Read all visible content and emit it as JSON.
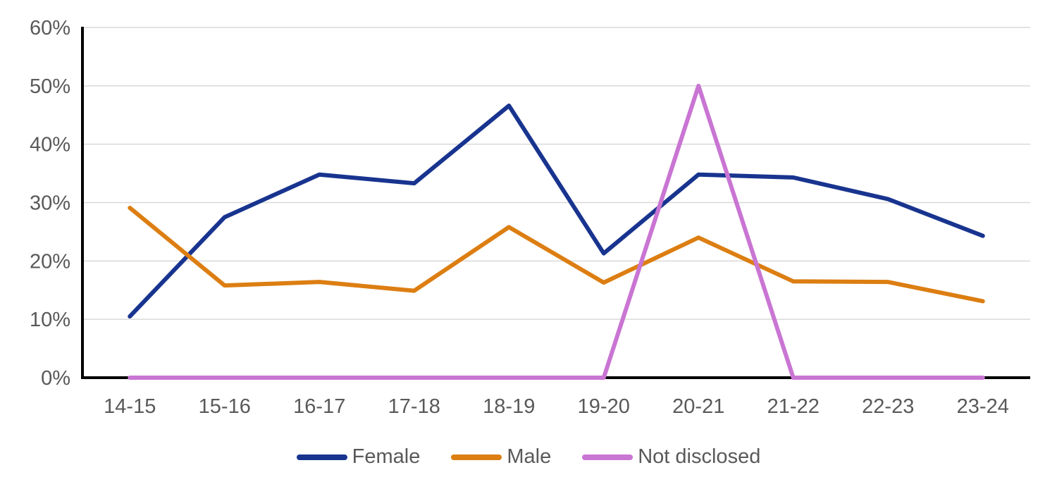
{
  "chart_data": {
    "type": "line",
    "title": "",
    "xlabel": "",
    "ylabel": "",
    "categories": [
      "14-15",
      "15-16",
      "16-17",
      "17-18",
      "18-19",
      "19-20",
      "20-21",
      "21-22",
      "22-23",
      "23-24"
    ],
    "series": [
      {
        "name": "Female",
        "color": "#18348f",
        "values": [
          10.5,
          27.5,
          34.8,
          33.3,
          46.6,
          21.3,
          34.8,
          34.3,
          30.6,
          24.3
        ]
      },
      {
        "name": "Male",
        "color": "#dc7e12",
        "values": [
          29.1,
          15.8,
          16.4,
          14.9,
          25.8,
          16.3,
          24.0,
          16.5,
          16.4,
          13.1
        ]
      },
      {
        "name": "Not disclosed",
        "color": "#c975d3",
        "values": [
          0,
          0,
          0,
          0,
          0,
          0,
          50,
          0,
          0,
          0
        ]
      }
    ],
    "ylim": [
      0,
      60
    ],
    "ytick_step": 10,
    "ytick_labels": [
      "0%",
      "10%",
      "20%",
      "30%",
      "40%",
      "50%",
      "60%"
    ],
    "grid": "horizontal-only",
    "gridline_color": "#d9d9d9",
    "axis_color": "#000000",
    "tick_label_color": "#595959",
    "legend_position": "bottom",
    "legend_labels": [
      "Female",
      "Male",
      "Not disclosed"
    ]
  }
}
